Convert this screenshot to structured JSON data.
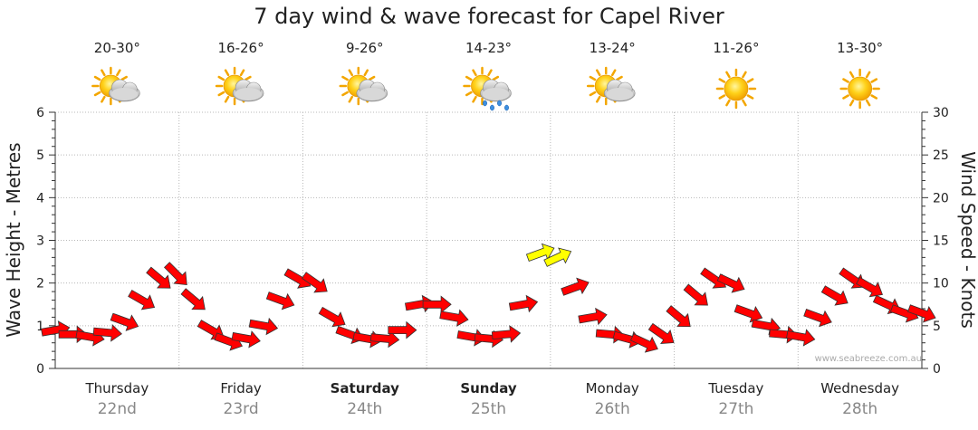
{
  "chart_data": {
    "type": "line",
    "title": "7 day wind & wave forecast for Capel River",
    "ylabel_left": "Wave Height - Metres",
    "ylabel_right": "Wind Speed - Knots",
    "ylim_left": [
      0,
      6
    ],
    "ylim_right": [
      0,
      30
    ],
    "yticks_left": [
      "0",
      "1",
      "2",
      "3",
      "4",
      "5",
      "6"
    ],
    "yticks_right": [
      "0",
      "5",
      "10",
      "15",
      "20",
      "25",
      "30"
    ],
    "grid": true,
    "days": [
      {
        "name": "Thursday",
        "date": "22nd",
        "temp": "20-30°",
        "icon": "partly-cloudy-icon",
        "bold": false
      },
      {
        "name": "Friday",
        "date": "23rd",
        "temp": "16-26°",
        "icon": "partly-cloudy-icon",
        "bold": false
      },
      {
        "name": "Saturday",
        "date": "24th",
        "temp": "9-26°",
        "icon": "partly-cloudy-icon",
        "bold": true
      },
      {
        "name": "Sunday",
        "date": "25th",
        "temp": "14-23°",
        "icon": "rain-icon",
        "bold": true
      },
      {
        "name": "Monday",
        "date": "26th",
        "temp": "13-24°",
        "icon": "partly-cloudy-icon",
        "bold": false
      },
      {
        "name": "Tuesday",
        "date": "27th",
        "temp": "11-26°",
        "icon": "sunny-icon",
        "bold": false
      },
      {
        "name": "Wednesday",
        "date": "28th",
        "temp": "13-30°",
        "icon": "sunny-icon",
        "bold": false
      }
    ],
    "wind_series": {
      "name": "Wind speed (knots) with direction arrows",
      "x_days": [
        0.0,
        0.14,
        0.28,
        0.42,
        0.56,
        0.7,
        0.84,
        0.98,
        1.12,
        1.26,
        1.4,
        1.54,
        1.68,
        1.82,
        1.96,
        2.1,
        2.24,
        2.38,
        2.52,
        2.66,
        2.8,
        2.94,
        3.08,
        3.22,
        3.36,
        3.5,
        3.64,
        3.78,
        3.92,
        4.06,
        4.2,
        4.34,
        4.48,
        4.62,
        4.76,
        4.9,
        5.04,
        5.18,
        5.32,
        5.46,
        5.6,
        5.74,
        5.88,
        6.02,
        6.16,
        6.3,
        6.44,
        6.58,
        6.72,
        6.86,
        7.0
      ],
      "knots": [
        4.5,
        4.0,
        3.7,
        4.2,
        5.5,
        8.0,
        10.5,
        11.0,
        8.0,
        4.5,
        3.2,
        3.5,
        5.0,
        8.0,
        10.5,
        10.0,
        6.0,
        4.0,
        3.5,
        3.5,
        4.5,
        7.5,
        7.5,
        6.0,
        3.7,
        3.5,
        4.0,
        7.5,
        13.5,
        13.0,
        9.5,
        6.0,
        4.0,
        3.5,
        3.0,
        4.0,
        6.0,
        8.5,
        10.5,
        10.0,
        6.5,
        5.0,
        4.0,
        3.7,
        6.0,
        8.5,
        10.5,
        9.5,
        7.5,
        6.5,
        6.5
      ],
      "directions_deg": [
        80,
        90,
        100,
        95,
        110,
        120,
        130,
        135,
        130,
        120,
        110,
        100,
        100,
        110,
        120,
        125,
        120,
        110,
        100,
        95,
        90,
        80,
        90,
        100,
        100,
        95,
        85,
        80,
        70,
        65,
        70,
        80,
        95,
        105,
        115,
        125,
        130,
        130,
        125,
        115,
        110,
        100,
        95,
        100,
        110,
        120,
        125,
        120,
        115,
        110,
        110
      ]
    },
    "highlight_color": "#ffff00",
    "arrow_color": "#ff0000",
    "watermark": "www.seabreeze.com.au"
  }
}
